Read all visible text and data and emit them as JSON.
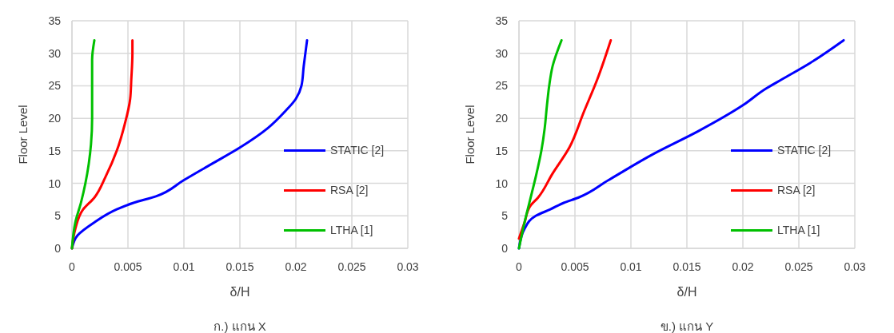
{
  "chart_data": [
    {
      "type": "line",
      "title": "ก.) แกน X",
      "xlabel": "δ/H",
      "ylabel": "Floor Level",
      "xlim": [
        0,
        0.03
      ],
      "xticks": [
        0,
        0.005,
        0.01,
        0.015,
        0.02,
        0.025,
        0.03
      ],
      "ylim": [
        0,
        35
      ],
      "yticks": [
        0,
        5,
        10,
        15,
        20,
        25,
        30,
        35
      ],
      "grid": true,
      "legend": "right",
      "series": [
        {
          "name": "STATIC [2]",
          "color": "#0000ff",
          "x": [
            0,
            0.0005,
            0.002,
            0.004,
            0.0055,
            0.0075,
            0.01,
            0.0125,
            0.015,
            0.0175,
            0.019,
            0.02,
            0.0205,
            0.0207,
            0.021
          ],
          "values": [
            0,
            2,
            4,
            6,
            7,
            8,
            10.5,
            13,
            15.5,
            18.5,
            21,
            23,
            25,
            28,
            32
          ]
        },
        {
          "name": "RSA [2]",
          "color": "#ff0000",
          "x": [
            0,
            0.0003,
            0.001,
            0.002,
            0.003,
            0.004,
            0.0047,
            0.0052,
            0.0053,
            0.0054,
            0.0054
          ],
          "values": [
            0,
            3,
            6,
            7.8,
            11,
            15,
            19,
            23,
            26,
            30,
            32
          ]
        },
        {
          "name": "LTHA [1]",
          "color": "#00c000",
          "x": [
            0,
            0.0003,
            0.0008,
            0.0012,
            0.0015,
            0.0017,
            0.0018,
            0.0018,
            0.0018,
            0.002
          ],
          "values": [
            0,
            4,
            7,
            10,
            13,
            16,
            20,
            25,
            29,
            32
          ]
        }
      ]
    },
    {
      "type": "line",
      "title": "ข.) แกน Y",
      "xlabel": "δ/H",
      "ylabel": "Floor Level",
      "xlim": [
        0,
        0.03
      ],
      "xticks": [
        0,
        0.005,
        0.01,
        0.015,
        0.02,
        0.025,
        0.03
      ],
      "ylim": [
        0,
        35
      ],
      "yticks": [
        0,
        5,
        10,
        15,
        20,
        25,
        30,
        35
      ],
      "grid": true,
      "legend": "right",
      "series": [
        {
          "name": "STATIC [2]",
          "color": "#0000ff",
          "x": [
            0,
            0.0005,
            0.0015,
            0.0028,
            0.004,
            0.0053,
            0.008,
            0.012,
            0.016,
            0.02,
            0.022,
            0.0235,
            0.026,
            0.029
          ],
          "values": [
            0,
            3,
            5,
            6,
            7,
            7.8,
            10.5,
            14.5,
            18,
            22,
            24.5,
            26,
            28.5,
            32
          ]
        },
        {
          "name": "RSA [2]",
          "color": "#ff0000",
          "x": [
            0,
            0.0005,
            0.001,
            0.0017,
            0.003,
            0.0045,
            0.0058,
            0.007,
            0.0082
          ],
          "values": [
            1.5,
            4,
            6.5,
            7.8,
            11.5,
            15.5,
            21,
            26,
            32
          ]
        },
        {
          "name": "LTHA [1]",
          "color": "#00c000",
          "x": [
            0,
            0.0005,
            0.001,
            0.0015,
            0.002,
            0.0023,
            0.0025,
            0.0027,
            0.003,
            0.0038
          ],
          "values": [
            0,
            4,
            7.5,
            11,
            15,
            18.5,
            22,
            25,
            28,
            32
          ]
        }
      ]
    }
  ]
}
